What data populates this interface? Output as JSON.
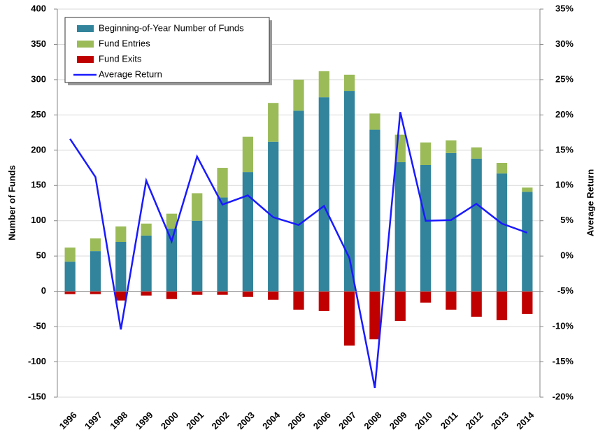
{
  "chart_data": {
    "type": "bar",
    "categories": [
      "1996",
      "1997",
      "1998",
      "1999",
      "2000",
      "2001",
      "2002",
      "2003",
      "2004",
      "2005",
      "2006",
      "2007",
      "2008",
      "2009",
      "2010",
      "2011",
      "2012",
      "2013",
      "2014"
    ],
    "series": [
      {
        "name": "Beginning-of-Year Number of Funds",
        "color": "#31849b",
        "values": [
          42,
          57,
          70,
          79,
          89,
          100,
          133,
          169,
          212,
          256,
          275,
          284,
          229,
          183,
          179,
          196,
          188,
          167,
          141
        ]
      },
      {
        "name": "Fund Entries",
        "color": "#9bbb59",
        "values": [
          20,
          18,
          22,
          17,
          21,
          39,
          42,
          50,
          55,
          44,
          37,
          23,
          23,
          39,
          32,
          18,
          16,
          15,
          6
        ]
      },
      {
        "name": "Fund Exits",
        "color": "#c00000",
        "values": [
          -4,
          -4,
          -13,
          -6,
          -11,
          -5,
          -5,
          -8,
          -12,
          -26,
          -28,
          -77,
          -68,
          -42,
          -16,
          -26,
          -36,
          -41,
          -32
        ]
      },
      {
        "name": "Average Return",
        "color": "#1a1aff",
        "type": "line",
        "axis": "y2",
        "values": [
          16.6,
          11.2,
          -10.4,
          10.7,
          2.1,
          14.1,
          7.3,
          8.6,
          5.5,
          4.4,
          7.1,
          -0.3,
          -18.7,
          20.4,
          5.0,
          5.1,
          7.4,
          4.6,
          3.3
        ]
      }
    ],
    "y_label": "Number of Funds",
    "y2_label": "Average Return",
    "ylim": [
      -150,
      400
    ],
    "yticks": [
      -150,
      -100,
      -50,
      0,
      50,
      100,
      150,
      200,
      250,
      300,
      350,
      400
    ],
    "y2lim": [
      -20,
      35
    ],
    "y2ticks": [
      {
        "value": -20,
        "label": "-20%"
      },
      {
        "value": -15,
        "label": "-15%"
      },
      {
        "value": -10,
        "label": "-10%"
      },
      {
        "value": -5,
        "label": "-5%"
      },
      {
        "value": 0,
        "label": "0%"
      },
      {
        "value": 5,
        "label": "5%"
      },
      {
        "value": 10,
        "label": "10%"
      },
      {
        "value": 15,
        "label": "15%"
      },
      {
        "value": 20,
        "label": "20%"
      },
      {
        "value": 25,
        "label": "25%"
      },
      {
        "value": 30,
        "label": "30%"
      },
      {
        "value": 35,
        "label": "35%"
      }
    ],
    "grid": true,
    "legend": "upper left"
  }
}
